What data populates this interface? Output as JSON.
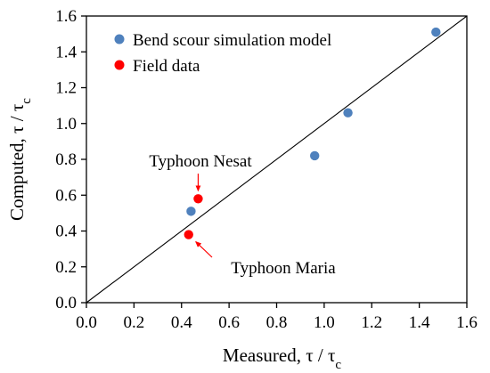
{
  "chart_data": {
    "type": "scatter",
    "xlabel": "Measured, τ / τ",
    "xlabel_sub": "c",
    "ylabel": "Computed, τ / τ",
    "ylabel_sub": "c",
    "xlim": [
      0.0,
      1.6
    ],
    "ylim": [
      0.0,
      1.6
    ],
    "xticks": [
      "0.0",
      "0.2",
      "0.4",
      "0.6",
      "0.8",
      "1.0",
      "1.2",
      "1.4",
      "1.6"
    ],
    "yticks": [
      "0.0",
      "0.2",
      "0.4",
      "0.6",
      "0.8",
      "1.0",
      "1.2",
      "1.4",
      "1.6"
    ],
    "grid": false,
    "legend_position": "top-left",
    "reference_line": {
      "from": [
        0,
        0
      ],
      "to": [
        1.6,
        1.6
      ]
    },
    "series": [
      {
        "name": "Bend scour simulation model",
        "color": "#4f81bd",
        "points": [
          [
            0.44,
            0.51
          ],
          [
            0.96,
            0.82
          ],
          [
            1.1,
            1.06
          ],
          [
            1.47,
            1.51
          ]
        ]
      },
      {
        "name": "Field data",
        "color": "#ff0000",
        "points": [
          [
            0.43,
            0.38
          ],
          [
            0.47,
            0.58
          ]
        ]
      }
    ],
    "annotations": [
      {
        "text": "Typhoon Nesat",
        "arrow_to": [
          0.47,
          0.58
        ]
      },
      {
        "text": "Typhoon Maria",
        "arrow_to": [
          0.43,
          0.38
        ]
      }
    ],
    "annotation_color": "#ff0000"
  }
}
